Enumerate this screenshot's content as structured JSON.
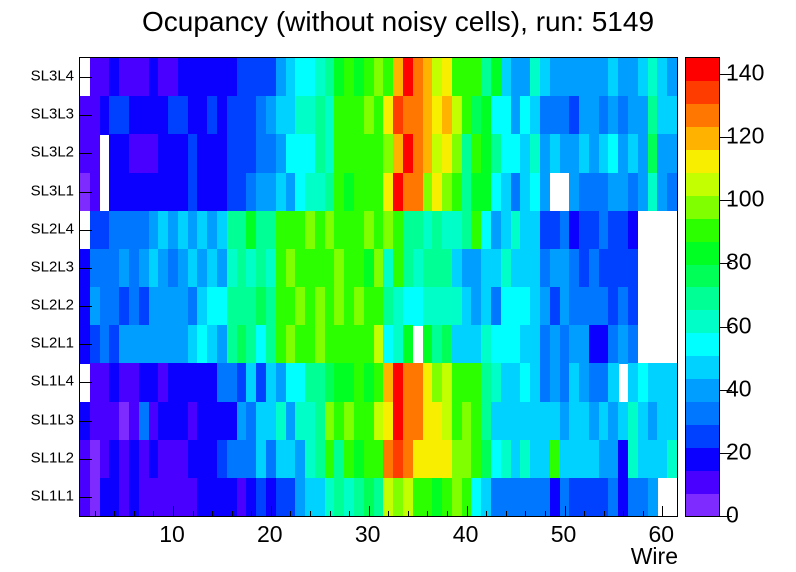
{
  "title": "Ocupancy (without noisy cells), run: 5149",
  "chart_data": {
    "type": "heatmap",
    "title": "Ocupancy (without noisy cells), run: 5149",
    "xlabel": "Wire",
    "x_range": [
      0.5,
      61.5
    ],
    "x_major_ticks": [
      10,
      20,
      30,
      40,
      50,
      60
    ],
    "x_minor_step": 2,
    "wires": 61,
    "rows": [
      "SL3L4",
      "SL3L3",
      "SL3L2",
      "SL3L1",
      "SL2L4",
      "SL2L3",
      "SL2L2",
      "SL2L1",
      "SL1L4",
      "SL1L3",
      "SL1L2",
      "SL1L1"
    ],
    "zmin": 0,
    "zmax": 145,
    "colorbar_ticks": [
      0,
      20,
      40,
      60,
      80,
      100,
      120,
      140
    ],
    "legend_position": "right",
    "grid": false,
    "background": "#ffffff",
    "frame_color": "#000000",
    "palette": [
      "#7d2bff",
      "#4a00ff",
      "#0b00ff",
      "#0040ff",
      "#0077ff",
      "#009fff",
      "#00d2ff",
      "#00ffff",
      "#00ffc8",
      "#00ff95",
      "#00ff57",
      "#00ff22",
      "#2bff00",
      "#80ff00",
      "#c3ff00",
      "#f7ee00",
      "#ffb300",
      "#ff7700",
      "#ff3c00",
      "#ff0000"
    ],
    "matrix": [
      [
        null,
        11,
        11,
        18,
        11,
        11,
        11,
        18,
        11,
        11,
        18,
        18,
        18,
        18,
        18,
        18,
        25,
        25,
        25,
        25,
        40,
        47,
        54,
        54,
        62,
        69,
        83,
        91,
        83,
        91,
        98,
        91,
        120,
        141,
        127,
        120,
        105,
        112,
        91,
        91,
        91,
        69,
        83,
        47,
        40,
        40,
        62,
        47,
        40,
        40,
        40,
        40,
        40,
        40,
        47,
        40,
        40,
        47,
        62,
        47,
        40
      ],
      [
        11,
        11,
        18,
        25,
        25,
        18,
        18,
        18,
        18,
        25,
        25,
        18,
        18,
        25,
        18,
        25,
        25,
        25,
        33,
        40,
        47,
        47,
        62,
        62,
        69,
        62,
        91,
        91,
        91,
        98,
        91,
        112,
        134,
        127,
        127,
        120,
        112,
        120,
        105,
        91,
        76,
        83,
        54,
        54,
        40,
        54,
        47,
        33,
        33,
        33,
        25,
        40,
        40,
        33,
        40,
        33,
        40,
        40,
        69,
        47,
        47
      ],
      [
        11,
        11,
        null,
        18,
        18,
        11,
        11,
        11,
        18,
        18,
        18,
        25,
        18,
        18,
        18,
        25,
        25,
        25,
        33,
        33,
        40,
        54,
        54,
        54,
        69,
        62,
        91,
        91,
        91,
        91,
        91,
        98,
        120,
        141,
        127,
        120,
        105,
        112,
        98,
        69,
        91,
        83,
        69,
        54,
        54,
        47,
        62,
        40,
        47,
        40,
        40,
        47,
        40,
        47,
        54,
        40,
        47,
        40,
        76,
        40,
        40
      ],
      [
        4,
        11,
        null,
        18,
        18,
        18,
        18,
        18,
        18,
        18,
        18,
        25,
        18,
        18,
        18,
        25,
        25,
        33,
        40,
        40,
        47,
        40,
        54,
        62,
        62,
        69,
        91,
        83,
        91,
        91,
        91,
        112,
        141,
        127,
        127,
        98,
        112,
        98,
        91,
        69,
        83,
        83,
        54,
        47,
        33,
        47,
        54,
        40,
        null,
        null,
        40,
        33,
        33,
        33,
        40,
        40,
        33,
        40,
        62,
        40,
        33
      ],
      [
        null,
        25,
        25,
        33,
        33,
        33,
        33,
        40,
        47,
        40,
        47,
        40,
        47,
        40,
        47,
        69,
        69,
        83,
        69,
        69,
        91,
        91,
        91,
        98,
        91,
        98,
        91,
        91,
        91,
        98,
        91,
        98,
        91,
        69,
        69,
        62,
        69,
        62,
        62,
        69,
        91,
        54,
        40,
        47,
        62,
        47,
        47,
        25,
        25,
        33,
        18,
        25,
        25,
        33,
        25,
        25,
        18,
        null,
        null,
        null,
        null
      ],
      [
        18,
        33,
        33,
        33,
        40,
        33,
        40,
        47,
        40,
        33,
        40,
        47,
        40,
        47,
        40,
        62,
        69,
        62,
        69,
        62,
        91,
        98,
        91,
        91,
        91,
        91,
        98,
        91,
        91,
        83,
        98,
        62,
        91,
        69,
        62,
        69,
        69,
        69,
        47,
        40,
        40,
        47,
        47,
        62,
        47,
        47,
        47,
        33,
        40,
        40,
        33,
        25,
        33,
        25,
        25,
        25,
        25,
        null,
        null,
        null,
        null
      ],
      [
        18,
        40,
        33,
        33,
        25,
        33,
        25,
        40,
        40,
        40,
        40,
        33,
        47,
        54,
        54,
        69,
        69,
        69,
        76,
        69,
        91,
        91,
        98,
        91,
        98,
        91,
        98,
        91,
        98,
        91,
        91,
        69,
        62,
        54,
        54,
        62,
        62,
        62,
        62,
        47,
        40,
        47,
        33,
        54,
        54,
        54,
        47,
        40,
        25,
        40,
        33,
        33,
        33,
        33,
        25,
        33,
        25,
        null,
        null,
        null,
        null
      ],
      [
        18,
        25,
        33,
        25,
        40,
        40,
        40,
        40,
        40,
        40,
        40,
        47,
        54,
        47,
        40,
        69,
        76,
        69,
        54,
        69,
        91,
        98,
        91,
        91,
        98,
        91,
        91,
        91,
        91,
        91,
        105,
        54,
        62,
        83,
        null,
        83,
        69,
        76,
        47,
        47,
        47,
        62,
        54,
        54,
        54,
        47,
        47,
        33,
        40,
        33,
        40,
        40,
        18,
        18,
        33,
        40,
        33,
        null,
        null,
        null,
        null
      ],
      [
        null,
        11,
        11,
        18,
        11,
        11,
        18,
        18,
        11,
        18,
        18,
        18,
        18,
        18,
        33,
        33,
        25,
        47,
        25,
        47,
        40,
        54,
        54,
        69,
        69,
        76,
        83,
        83,
        91,
        83,
        91,
        120,
        141,
        127,
        127,
        112,
        98,
        105,
        91,
        91,
        91,
        69,
        62,
        47,
        47,
        54,
        47,
        33,
        40,
        33,
        47,
        40,
        33,
        33,
        47,
        null,
        47,
        54,
        47,
        47,
        47
      ],
      [
        18,
        11,
        11,
        11,
        4,
        11,
        33,
        11,
        18,
        18,
        18,
        11,
        18,
        18,
        18,
        18,
        40,
        33,
        47,
        47,
        62,
        40,
        62,
        62,
        69,
        98,
        91,
        98,
        91,
        91,
        105,
        112,
        141,
        127,
        127,
        112,
        112,
        105,
        91,
        98,
        91,
        69,
        47,
        47,
        47,
        47,
        47,
        47,
        47,
        40,
        47,
        47,
        40,
        47,
        40,
        47,
        62,
        47,
        40,
        47,
        47
      ],
      [
        11,
        4,
        11,
        18,
        11,
        18,
        11,
        18,
        11,
        11,
        11,
        18,
        18,
        18,
        25,
        33,
        33,
        33,
        47,
        33,
        47,
        47,
        40,
        62,
        69,
        91,
        69,
        91,
        83,
        91,
        91,
        127,
        134,
        127,
        112,
        112,
        112,
        112,
        98,
        98,
        91,
        76,
        54,
        62,
        47,
        62,
        47,
        47,
        91,
        47,
        47,
        47,
        47,
        40,
        40,
        18,
        62,
        47,
        47,
        47,
        62
      ],
      [
        11,
        4,
        18,
        18,
        11,
        18,
        11,
        11,
        11,
        11,
        11,
        11,
        18,
        18,
        18,
        18,
        11,
        18,
        25,
        18,
        25,
        25,
        40,
        47,
        47,
        62,
        69,
        62,
        69,
        76,
        69,
        105,
        98,
        105,
        91,
        91,
        83,
        91,
        98,
        91,
        54,
        47,
        33,
        33,
        33,
        33,
        33,
        33,
        18,
        33,
        25,
        25,
        25,
        25,
        33,
        18,
        33,
        33,
        40,
        null,
        null
      ]
    ]
  }
}
